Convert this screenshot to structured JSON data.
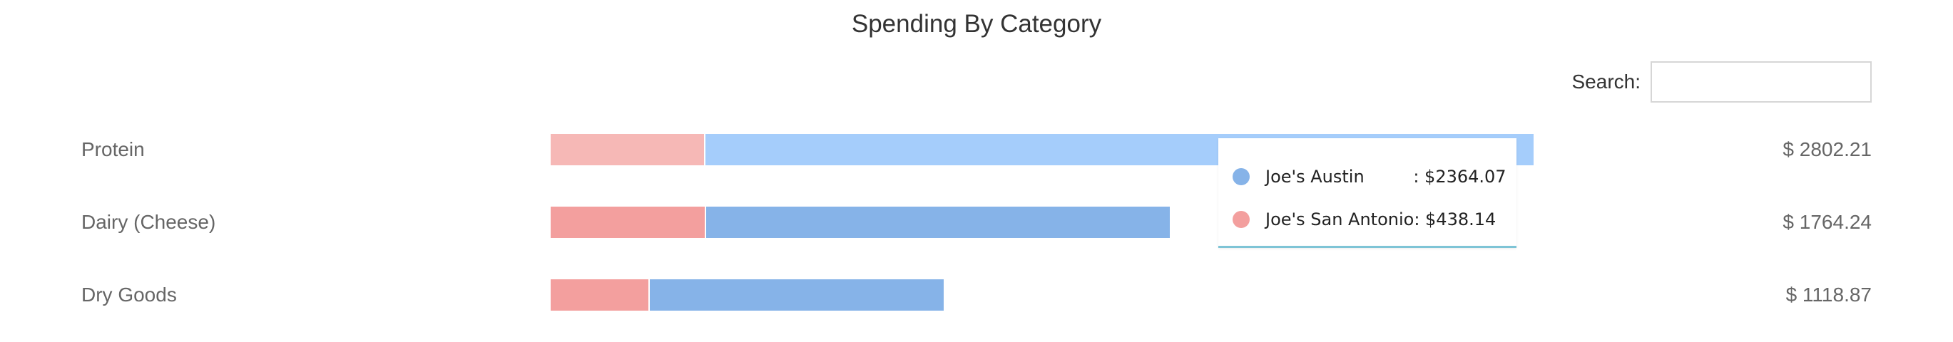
{
  "title": "Spending By Category",
  "search": {
    "label": "Search:",
    "value": ""
  },
  "colors": {
    "austin": "#86b3e8",
    "san_antonio": "#f39f9e"
  },
  "chart_data": {
    "type": "bar",
    "stacked": true,
    "orientation": "horizontal",
    "title": "Spending By Category",
    "categories": [
      "Protein",
      "Dairy (Cheese)",
      "Dry Goods"
    ],
    "totals": [
      "$ 2802.21",
      "$ 1764.24",
      "$ 1118.87"
    ],
    "total_values": [
      2802.21,
      1764.24,
      1118.87
    ],
    "series": [
      {
        "name": "Joe's San Antonio",
        "color": "#f39f9e",
        "values": [
          438.14,
          440.0,
          280.0
        ]
      },
      {
        "name": "Joe's Austin",
        "color": "#86b3e8",
        "values": [
          2364.07,
          1324.24,
          838.87
        ]
      }
    ],
    "highlighted_category": "Protein",
    "xlim": [
      0,
      3000
    ]
  },
  "tooltip": {
    "category": "Protein",
    "lines": [
      {
        "text": "Joe's Austin         : $2364.07",
        "series": "Joe's Austin"
      },
      {
        "text": "Joe's San Antonio: $438.14",
        "series": "Joe's San Antonio"
      }
    ]
  }
}
